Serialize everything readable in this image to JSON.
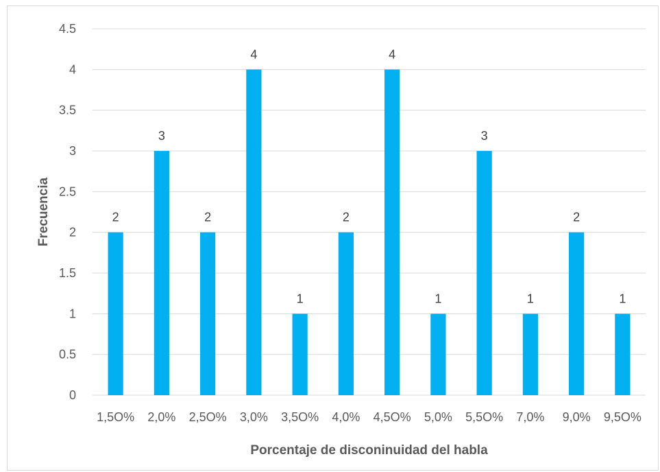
{
  "chart_data": {
    "type": "bar",
    "title": "",
    "xlabel": "Porcentaje de disconinuidad del habla",
    "ylabel": "Frecuencia",
    "categories": [
      "1,5O%",
      "2,0%",
      "2,5O%",
      "3,0%",
      "3,5O%",
      "4,0%",
      "4,5O%",
      "5,0%",
      "5,5O%",
      "7,0%",
      "9,0%",
      "9,5O%"
    ],
    "series": [
      {
        "values": [
          2,
          3,
          2,
          4,
          1,
          2,
          4,
          1,
          3,
          1,
          2,
          1
        ]
      }
    ],
    "ylim": [
      0,
      4.5
    ],
    "yticks": [
      "0",
      "0.5",
      "1",
      "1.5",
      "2",
      "2.5",
      "3",
      "3.5",
      "4",
      "4.5"
    ],
    "data_labels": [
      "2",
      "3",
      "2",
      "4",
      "1",
      "2",
      "4",
      "1",
      "3",
      "1",
      "2",
      "1"
    ],
    "grid": true,
    "legend": "none",
    "bar_color": "#00b0f0",
    "gridline_color": "#d9d9d9"
  }
}
